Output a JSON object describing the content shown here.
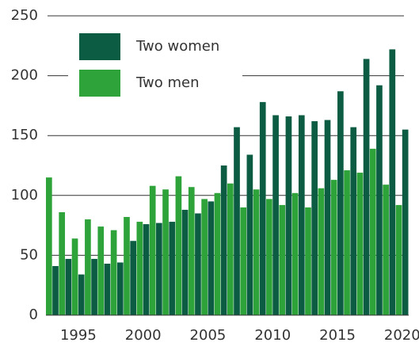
{
  "chart_data": {
    "type": "bar",
    "x": [
      1993,
      1994,
      1995,
      1996,
      1997,
      1998,
      1999,
      2000,
      2001,
      2002,
      2003,
      2004,
      2005,
      2006,
      2007,
      2008,
      2009,
      2010,
      2011,
      2012,
      2013,
      2014,
      2015,
      2016,
      2017,
      2018,
      2019,
      2020
    ],
    "series": [
      {
        "name": "Two women",
        "color": "#0b5c43",
        "values": [
          41,
          47,
          34,
          47,
          43,
          44,
          62,
          76,
          77,
          78,
          88,
          85,
          95,
          125,
          157,
          134,
          178,
          167,
          166,
          167,
          162,
          163,
          187,
          157,
          214,
          192,
          222,
          155
        ]
      },
      {
        "name": "Two men",
        "color": "#2ea33a",
        "values": [
          115,
          86,
          64,
          80,
          74,
          71,
          82,
          78,
          108,
          105,
          116,
          107,
          97,
          102,
          110,
          90,
          105,
          97,
          92,
          102,
          90,
          106,
          113,
          121,
          119,
          139,
          109,
          92
        ]
      }
    ],
    "xlim": [
      1992.5,
      2020.5
    ],
    "xticks": [
      1995,
      2000,
      2005,
      2010,
      2015,
      2020
    ],
    "ylim": [
      0,
      250
    ],
    "yticks": [
      0,
      50,
      100,
      150,
      200,
      250
    ],
    "grid": true,
    "legend": "top-left"
  }
}
